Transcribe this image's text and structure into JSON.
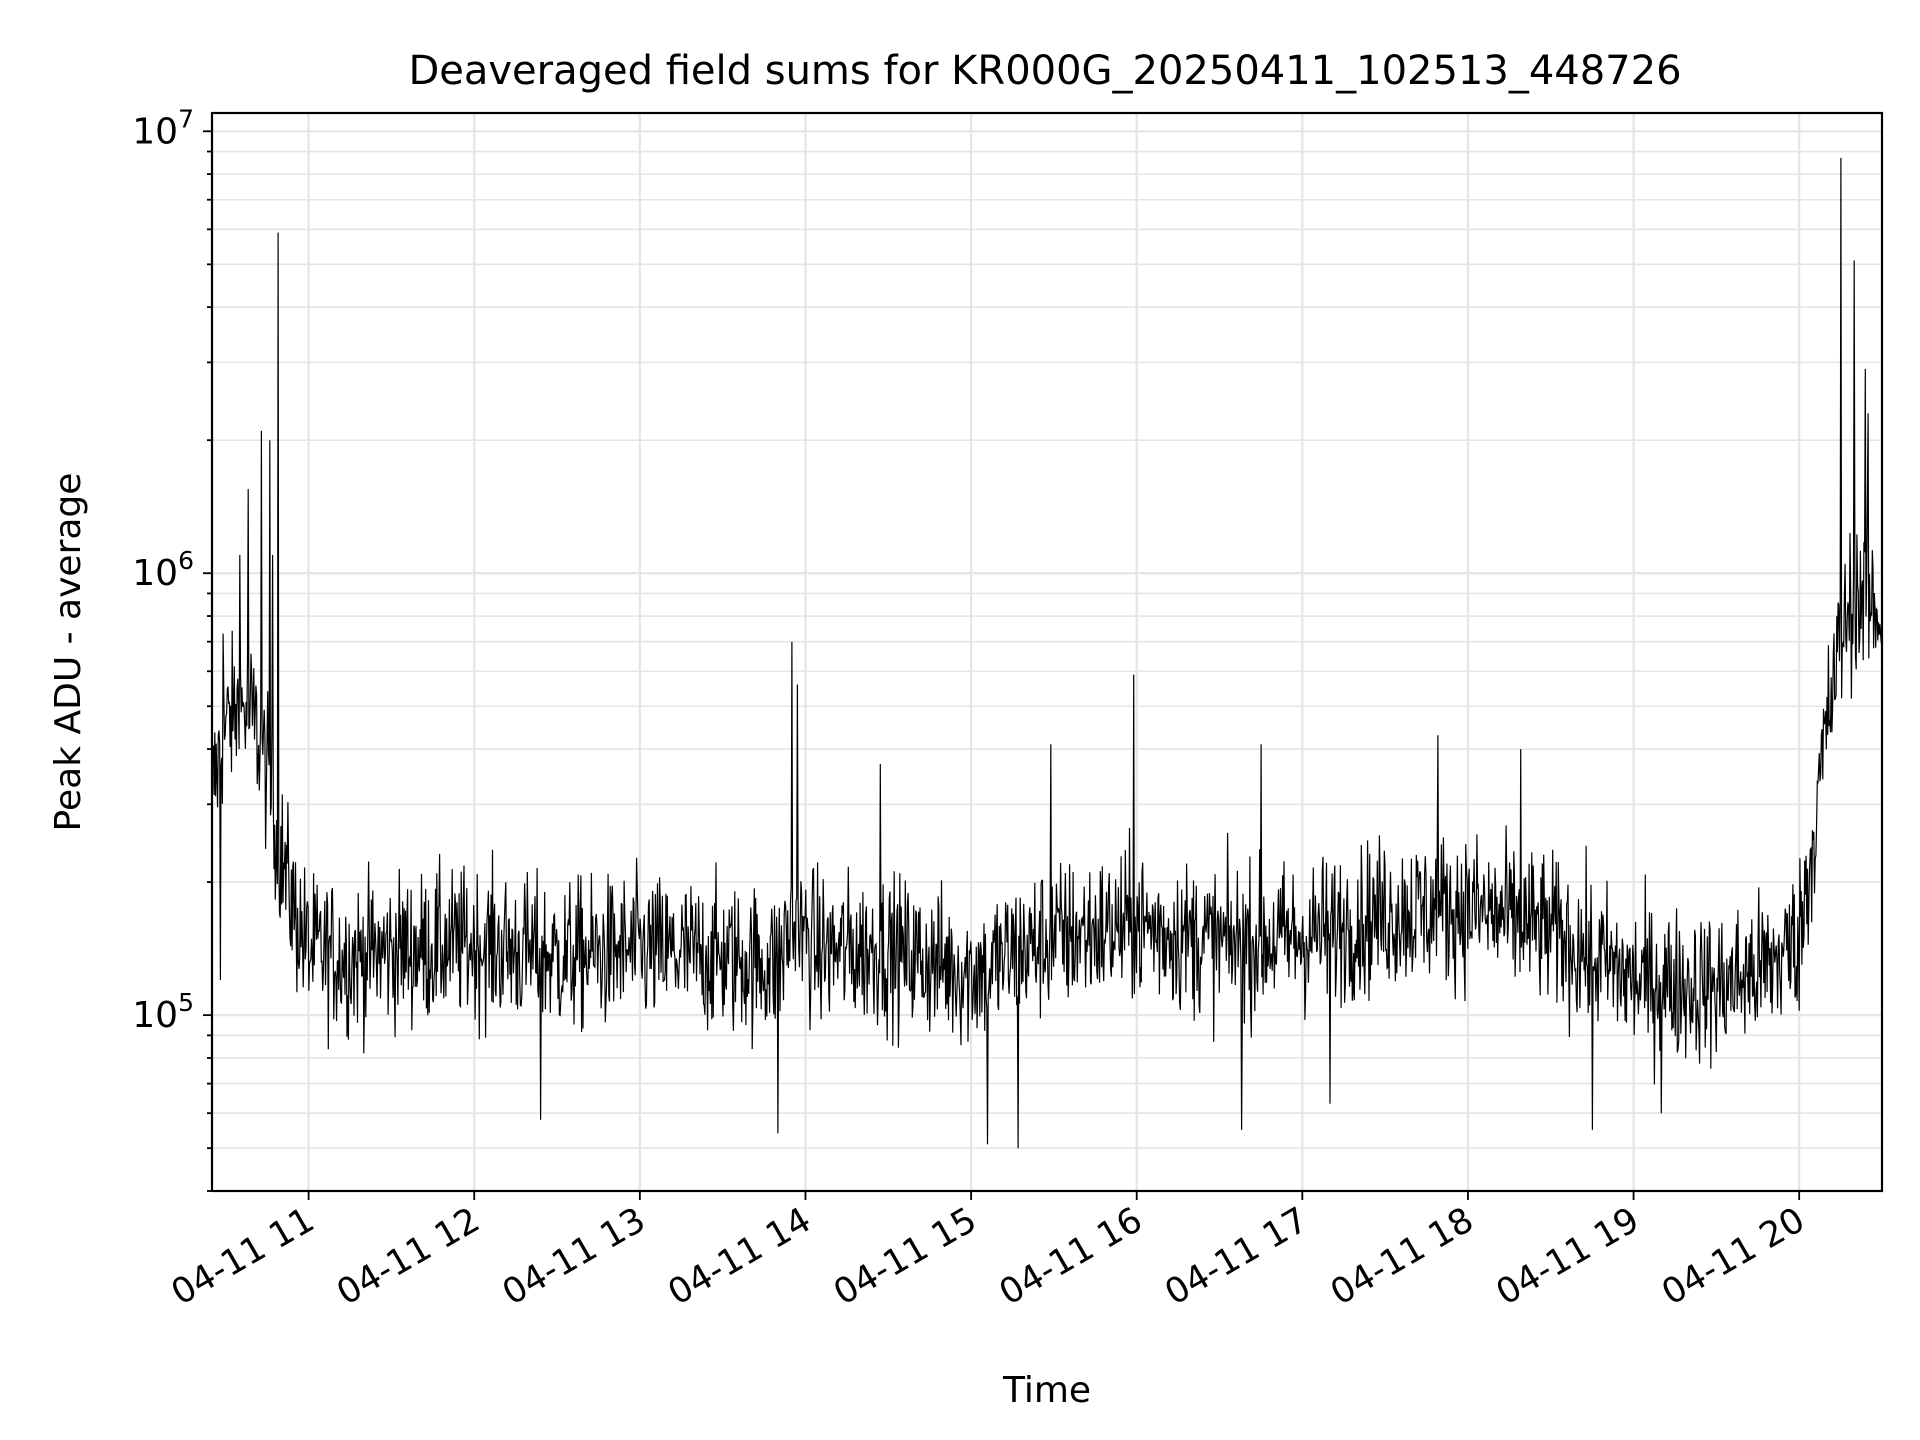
{
  "chart_data": {
    "type": "line",
    "title": "Deaveraged field sums for KR000G_20250411_102513_448726",
    "xlabel": "Time",
    "ylabel": "Peak ADU - average",
    "yscale": "log",
    "ylim": [
      40000,
      11000000
    ],
    "xlim": [
      "2025-04-11 10:25",
      "2025-04-11 20:30"
    ],
    "grid": true,
    "legend": "none",
    "line_color": "#000000",
    "grid_color": "#e5e5e5",
    "y_ticks": [
      {
        "value": 100000,
        "base": "10",
        "exp": "5"
      },
      {
        "value": 1000000,
        "base": "10",
        "exp": "6"
      },
      {
        "value": 10000000,
        "base": "10",
        "exp": "7"
      }
    ],
    "x_ticks": [
      {
        "value": "2025-04-11 11:00",
        "label": "04-11 11"
      },
      {
        "value": "2025-04-11 12:00",
        "label": "04-11 12"
      },
      {
        "value": "2025-04-11 13:00",
        "label": "04-11 13"
      },
      {
        "value": "2025-04-11 14:00",
        "label": "04-11 14"
      },
      {
        "value": "2025-04-11 15:00",
        "label": "04-11 15"
      },
      {
        "value": "2025-04-11 16:00",
        "label": "04-11 16"
      },
      {
        "value": "2025-04-11 17:00",
        "label": "04-11 17"
      },
      {
        "value": "2025-04-11 18:00",
        "label": "04-11 18"
      },
      {
        "value": "2025-04-11 19:00",
        "label": "04-11 19"
      },
      {
        "value": "2025-04-11 20:00",
        "label": "04-11 20"
      }
    ],
    "series": [
      {
        "x": [
          "2025-04-11 10:25",
          "2025-04-11 10:30",
          "2025-04-11 10:35",
          "2025-04-11 10:40",
          "2025-04-11 10:45",
          "2025-04-11 10:50",
          "2025-04-11 10:55",
          "2025-04-11 11:00",
          "2025-04-11 11:15",
          "2025-04-11 11:30",
          "2025-04-11 12:00",
          "2025-04-11 12:30",
          "2025-04-11 13:00",
          "2025-04-11 13:30",
          "2025-04-11 13:50",
          "2025-04-11 13:55",
          "2025-04-11 14:05",
          "2025-04-11 14:30",
          "2025-04-11 15:00",
          "2025-04-11 15:30",
          "2025-04-11 16:00",
          "2025-04-11 16:30",
          "2025-04-11 17:00",
          "2025-04-11 17:30",
          "2025-04-11 18:00",
          "2025-04-11 18:30",
          "2025-04-11 19:00",
          "2025-04-11 19:30",
          "2025-04-11 19:50",
          "2025-04-11 20:00",
          "2025-04-11 20:05",
          "2025-04-11 20:10",
          "2025-04-11 20:15",
          "2025-04-11 20:20",
          "2025-04-11 20:25",
          "2025-04-11 20:30"
        ],
        "values": [
          320000,
          450000,
          500000,
          470000,
          350000,
          230000,
          170000,
          140000,
          135000,
          140000,
          145000,
          135000,
          140000,
          135000,
          130000,
          160000,
          140000,
          140000,
          125000,
          150000,
          160000,
          145000,
          150000,
          170000,
          175000,
          155000,
          120000,
          115000,
          130000,
          150000,
          250000,
          450000,
          700000,
          900000,
          850000,
          800000
        ],
        "peaks": [
          {
            "x": "2025-04-11 10:29",
            "y": 730000
          },
          {
            "x": "2025-04-11 10:35",
            "y": 1100000
          },
          {
            "x": "2025-04-11 10:38",
            "y": 1550000
          },
          {
            "x": "2025-04-11 10:43",
            "y": 2100000
          },
          {
            "x": "2025-04-11 10:46",
            "y": 2000000
          },
          {
            "x": "2025-04-11 10:47",
            "y": 1100000
          },
          {
            "x": "2025-04-11 10:49",
            "y": 5900000
          },
          {
            "x": "2025-04-11 13:55",
            "y": 700000
          },
          {
            "x": "2025-04-11 13:57",
            "y": 560000
          },
          {
            "x": "2025-04-11 14:27",
            "y": 370000
          },
          {
            "x": "2025-04-11 15:29",
            "y": 410000
          },
          {
            "x": "2025-04-11 15:59",
            "y": 590000
          },
          {
            "x": "2025-04-11 16:45",
            "y": 410000
          },
          {
            "x": "2025-04-11 17:49",
            "y": 430000
          },
          {
            "x": "2025-04-11 18:19",
            "y": 400000
          },
          {
            "x": "2025-04-11 20:15",
            "y": 8700000
          },
          {
            "x": "2025-04-11 20:20",
            "y": 5100000
          },
          {
            "x": "2025-04-11 20:24",
            "y": 2900000
          },
          {
            "x": "2025-04-11 20:25",
            "y": 2300000
          }
        ],
        "dips": [
          {
            "x": "2025-04-11 10:28",
            "y": 120000
          },
          {
            "x": "2025-04-11 12:24",
            "y": 58000
          },
          {
            "x": "2025-04-11 13:50",
            "y": 54000
          },
          {
            "x": "2025-04-11 15:06",
            "y": 51000
          },
          {
            "x": "2025-04-11 15:17",
            "y": 50000
          },
          {
            "x": "2025-04-11 16:38",
            "y": 55000
          },
          {
            "x": "2025-04-11 17:10",
            "y": 63000
          },
          {
            "x": "2025-04-11 18:45",
            "y": 55000
          },
          {
            "x": "2025-04-11 19:10",
            "y": 60000
          }
        ]
      }
    ]
  }
}
